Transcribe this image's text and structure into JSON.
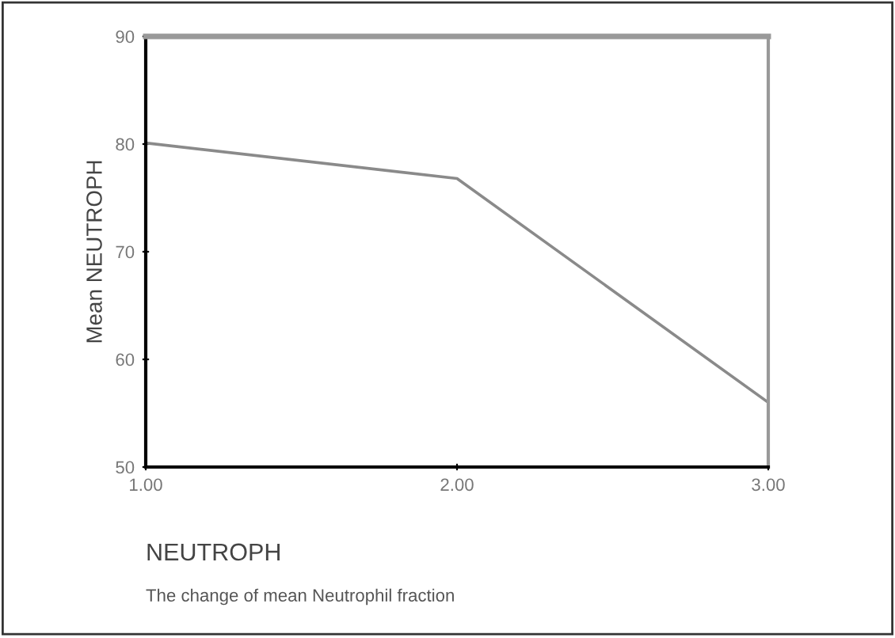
{
  "chart_data": {
    "type": "line",
    "xlabel": "NEUTROPH",
    "ylabel": "Mean NEUTROPH",
    "annotations": [
      "The change of mean Neutrophil fraction"
    ],
    "x": [
      1,
      2,
      3
    ],
    "series": [
      {
        "color": "#8a8a8a",
        "values": [
          80.1,
          76.8,
          56.0
        ]
      }
    ],
    "xlim": [
      1,
      3
    ],
    "xticks": [
      {
        "value": 1,
        "label": "1.00"
      },
      {
        "value": 2,
        "label": "2.00"
      },
      {
        "value": 3,
        "label": "3.00"
      }
    ],
    "ylim": [
      50,
      90
    ],
    "yticks": [
      50,
      60,
      70,
      80,
      90
    ],
    "grid": false,
    "legend": false,
    "marker": "none",
    "line_style": "solid"
  }
}
